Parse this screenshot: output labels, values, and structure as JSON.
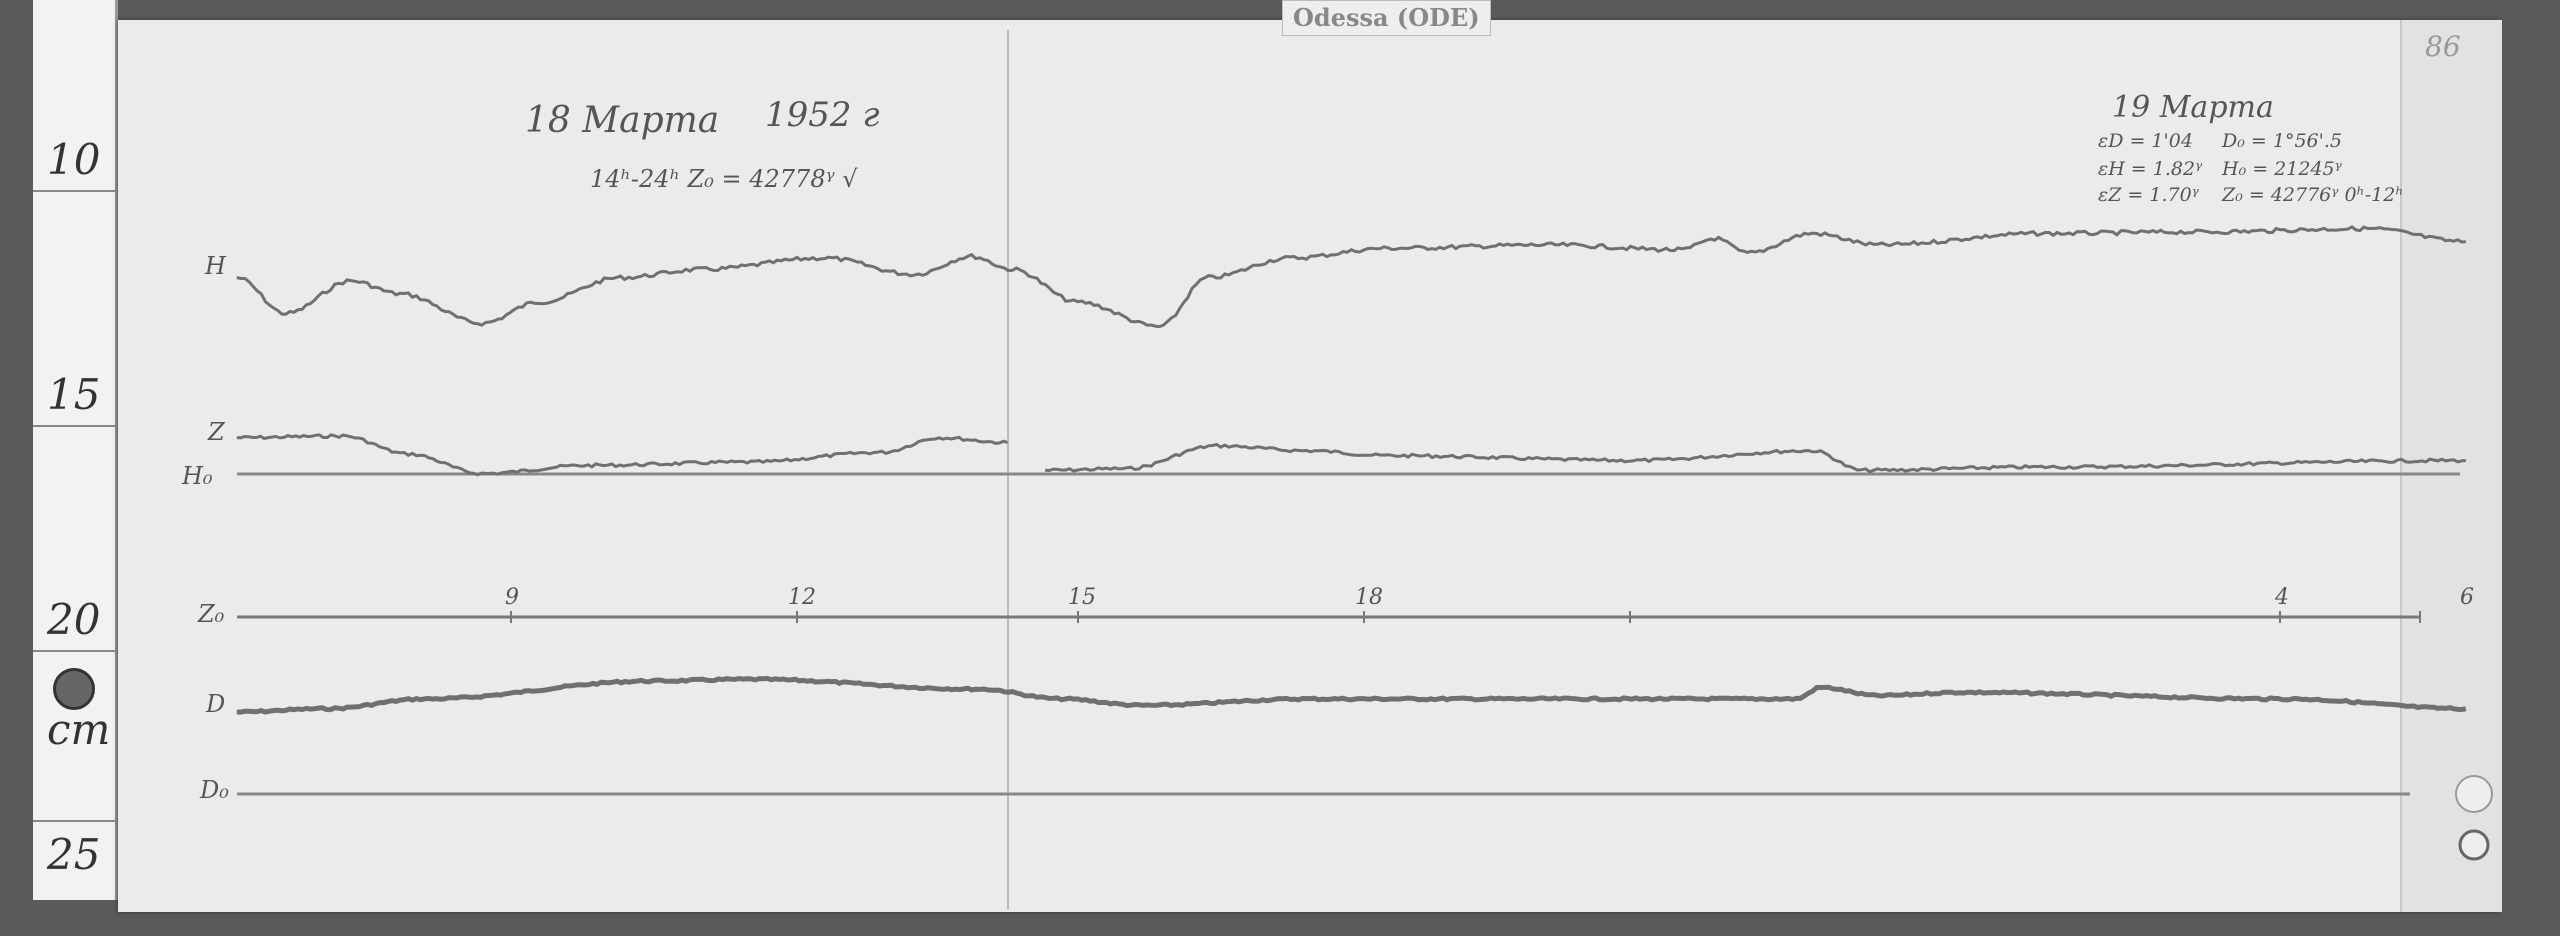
{
  "station_label": "Odessa (ODE)",
  "ruler": {
    "labels": [
      "10",
      "15",
      "20",
      "cm",
      "25"
    ]
  },
  "header_left": {
    "date": "18 Марта",
    "year": "1952 г",
    "z0_note": "14ʰ-24ʰ Z₀ = 42778ᵞ √"
  },
  "header_right": {
    "date": "19 Марта",
    "eD": "εD = 1'04",
    "eH": "εH = 1.82ᵞ",
    "eZ": "εZ = 1.70ᵞ",
    "D0": "D₀ = 1°56'.5",
    "H0": "H₀ = 21245ᵞ",
    "Z0": "Z₀ = 42776ᵞ 0ʰ-12ʰ"
  },
  "page_number": "86",
  "trace_labels": {
    "H": "H",
    "Z": "Z",
    "H0": "H₀",
    "Z0": "Z₀",
    "D": "D",
    "D0": "D₀"
  },
  "time_ticks": [
    "9",
    "12",
    "15",
    "18",
    "4",
    "6"
  ],
  "colors": {
    "trace": "#707070",
    "paper": "#ebebeb",
    "frame": "#5a5a5a"
  }
}
